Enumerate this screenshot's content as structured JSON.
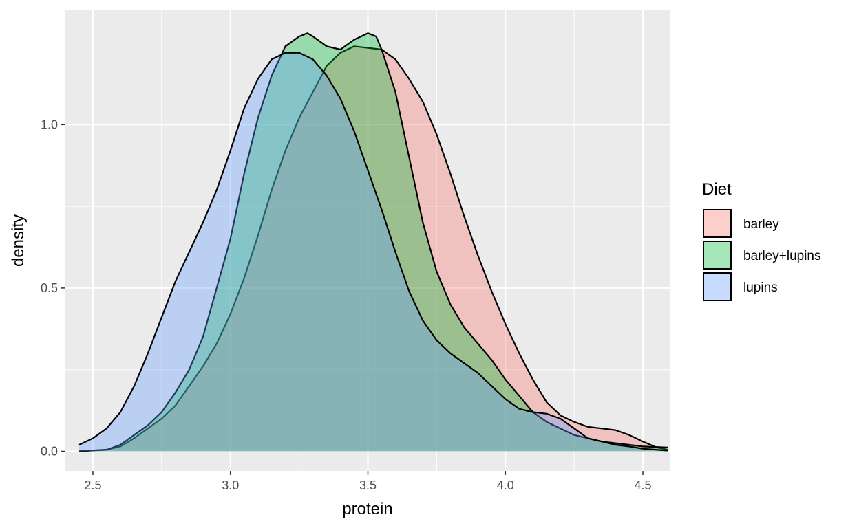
{
  "chart_data": {
    "type": "area",
    "subtype": "density",
    "title": "",
    "xlabel": "protein",
    "ylabel": "density",
    "xlim": [
      2.4,
      4.6
    ],
    "ylim": [
      -0.06,
      1.35
    ],
    "x_ticks": [
      2.5,
      3.0,
      3.5,
      4.0,
      4.5
    ],
    "x_tick_labels": [
      "2.5",
      "3.0",
      "3.5",
      "4.0",
      "4.5"
    ],
    "y_ticks": [
      0.0,
      0.5,
      1.0
    ],
    "y_tick_labels": [
      "0.0",
      "0.5",
      "1.0"
    ],
    "grid": true,
    "legend": {
      "title": "Diet",
      "position": "right"
    },
    "series": [
      {
        "name": "barley",
        "color": "#F8766D",
        "x": [
          2.45,
          2.55,
          2.6,
          2.65,
          2.7,
          2.75,
          2.8,
          2.85,
          2.9,
          2.95,
          3.0,
          3.05,
          3.1,
          3.15,
          3.2,
          3.25,
          3.3,
          3.35,
          3.4,
          3.45,
          3.5,
          3.55,
          3.6,
          3.65,
          3.7,
          3.75,
          3.8,
          3.85,
          3.9,
          3.95,
          4.0,
          4.05,
          4.1,
          4.15,
          4.2,
          4.25,
          4.3,
          4.35,
          4.4,
          4.45,
          4.5,
          4.55,
          4.59
        ],
        "values": [
          0.0,
          0.005,
          0.015,
          0.04,
          0.07,
          0.1,
          0.14,
          0.2,
          0.26,
          0.33,
          0.42,
          0.53,
          0.66,
          0.8,
          0.92,
          1.02,
          1.1,
          1.18,
          1.22,
          1.24,
          1.235,
          1.23,
          1.2,
          1.14,
          1.07,
          0.97,
          0.85,
          0.72,
          0.6,
          0.49,
          0.39,
          0.3,
          0.22,
          0.15,
          0.11,
          0.09,
          0.075,
          0.07,
          0.065,
          0.05,
          0.03,
          0.012,
          0.005
        ]
      },
      {
        "name": "barley+lupins",
        "color": "#00BA38",
        "x": [
          2.45,
          2.55,
          2.6,
          2.65,
          2.7,
          2.75,
          2.8,
          2.85,
          2.9,
          2.95,
          3.0,
          3.05,
          3.1,
          3.15,
          3.2,
          3.25,
          3.28,
          3.3,
          3.35,
          3.4,
          3.45,
          3.5,
          3.53,
          3.55,
          3.6,
          3.65,
          3.7,
          3.75,
          3.8,
          3.85,
          3.9,
          3.95,
          4.0,
          4.05,
          4.1,
          4.15,
          4.2,
          4.25,
          4.3,
          4.35,
          4.4,
          4.45,
          4.5,
          4.59
        ],
        "values": [
          0.0,
          0.005,
          0.02,
          0.05,
          0.08,
          0.12,
          0.18,
          0.25,
          0.35,
          0.5,
          0.65,
          0.85,
          1.02,
          1.15,
          1.24,
          1.27,
          1.28,
          1.27,
          1.24,
          1.23,
          1.26,
          1.28,
          1.27,
          1.23,
          1.1,
          0.9,
          0.7,
          0.55,
          0.45,
          0.38,
          0.33,
          0.28,
          0.22,
          0.17,
          0.12,
          0.09,
          0.07,
          0.05,
          0.04,
          0.03,
          0.025,
          0.02,
          0.015,
          0.012
        ]
      },
      {
        "name": "lupins",
        "color": "#619CFF",
        "x": [
          2.45,
          2.5,
          2.55,
          2.6,
          2.65,
          2.7,
          2.75,
          2.8,
          2.85,
          2.9,
          2.95,
          3.0,
          3.05,
          3.1,
          3.15,
          3.2,
          3.25,
          3.3,
          3.35,
          3.4,
          3.45,
          3.5,
          3.55,
          3.6,
          3.65,
          3.7,
          3.75,
          3.8,
          3.85,
          3.9,
          3.95,
          4.0,
          4.05,
          4.1,
          4.15,
          4.2,
          4.25,
          4.3,
          4.35,
          4.4,
          4.45,
          4.5,
          4.59
        ],
        "values": [
          0.02,
          0.04,
          0.07,
          0.12,
          0.2,
          0.3,
          0.41,
          0.52,
          0.61,
          0.7,
          0.8,
          0.92,
          1.05,
          1.14,
          1.2,
          1.22,
          1.22,
          1.2,
          1.15,
          1.08,
          0.98,
          0.86,
          0.74,
          0.61,
          0.49,
          0.4,
          0.34,
          0.3,
          0.27,
          0.24,
          0.2,
          0.16,
          0.13,
          0.12,
          0.115,
          0.1,
          0.07,
          0.04,
          0.03,
          0.02,
          0.015,
          0.008,
          0.002
        ]
      }
    ]
  }
}
